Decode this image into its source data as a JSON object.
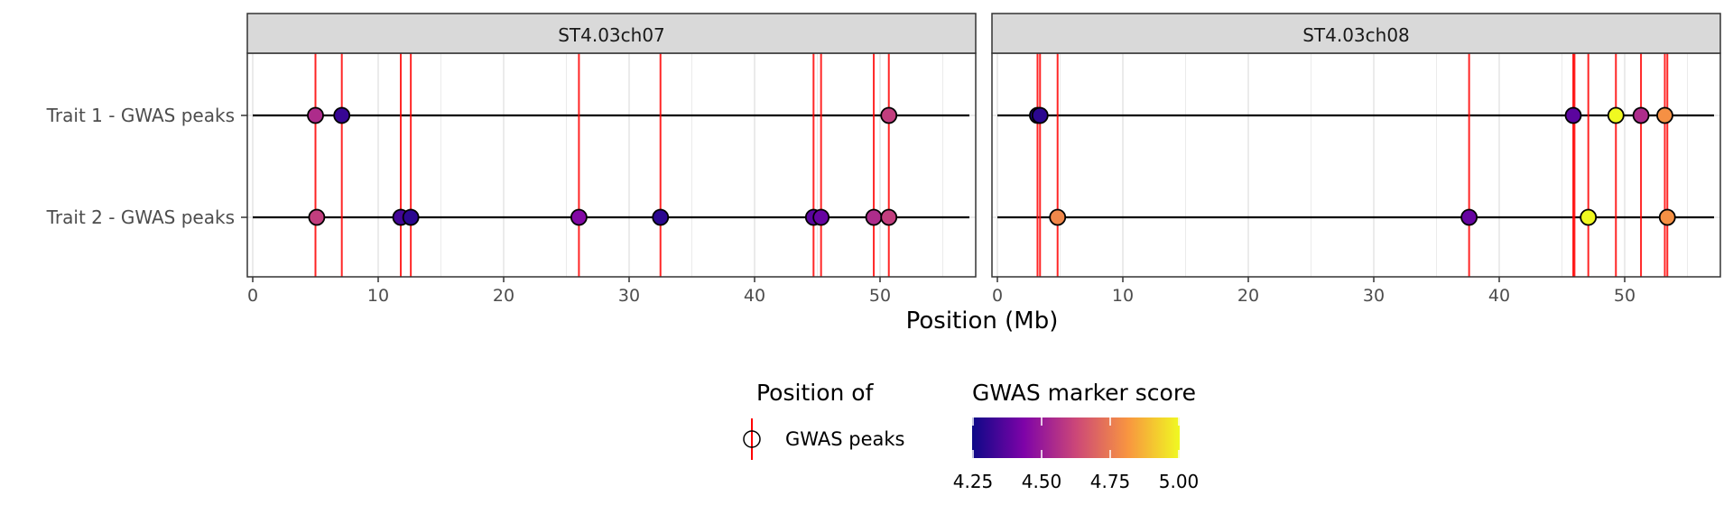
{
  "chart_data": {
    "type": "scatter",
    "title": "",
    "xlabel": "Position (Mb)",
    "ylabel": "",
    "xlim": [
      0,
      57
    ],
    "x_ticks": [
      0,
      10,
      20,
      30,
      40,
      50
    ],
    "grid": true,
    "rows": [
      "Trait 1 - GWAS peaks",
      "Trait 2 - GWAS peaks"
    ],
    "panels": [
      {
        "name": "ST4.03ch07",
        "peak_lines": [
          5.0,
          7.1,
          11.8,
          12.6,
          26.0,
          32.5,
          44.7,
          45.3,
          49.5,
          50.7
        ],
        "points": [
          {
            "row": "Trait 1 - GWAS peaks",
            "x": 5.0,
            "score": 4.55
          },
          {
            "row": "Trait 1 - GWAS peaks",
            "x": 7.1,
            "score": 4.32
          },
          {
            "row": "Trait 1 - GWAS peaks",
            "x": 50.7,
            "score": 4.6
          },
          {
            "row": "Trait 2 - GWAS peaks",
            "x": 5.1,
            "score": 4.6
          },
          {
            "row": "Trait 2 - GWAS peaks",
            "x": 11.8,
            "score": 4.34
          },
          {
            "row": "Trait 2 - GWAS peaks",
            "x": 12.6,
            "score": 4.3
          },
          {
            "row": "Trait 2 - GWAS peaks",
            "x": 26.0,
            "score": 4.45
          },
          {
            "row": "Trait 2 - GWAS peaks",
            "x": 32.5,
            "score": 4.3
          },
          {
            "row": "Trait 2 - GWAS peaks",
            "x": 44.7,
            "score": 4.38
          },
          {
            "row": "Trait 2 - GWAS peaks",
            "x": 45.3,
            "score": 4.4
          },
          {
            "row": "Trait 2 - GWAS peaks",
            "x": 49.5,
            "score": 4.55
          },
          {
            "row": "Trait 2 - GWAS peaks",
            "x": 50.7,
            "score": 4.6
          }
        ]
      },
      {
        "name": "ST4.03ch08",
        "peak_lines": [
          3.2,
          3.4,
          4.8,
          37.6,
          45.9,
          46.0,
          47.1,
          49.3,
          51.3,
          53.2,
          53.4
        ],
        "points": [
          {
            "row": "Trait 1 - GWAS peaks",
            "x": 3.2,
            "score": 4.28
          },
          {
            "row": "Trait 1 - GWAS peaks",
            "x": 3.4,
            "score": 4.3
          },
          {
            "row": "Trait 1 - GWAS peaks",
            "x": 45.9,
            "score": 4.38
          },
          {
            "row": "Trait 1 - GWAS peaks",
            "x": 49.3,
            "score": 5.0
          },
          {
            "row": "Trait 1 - GWAS peaks",
            "x": 51.3,
            "score": 4.55
          },
          {
            "row": "Trait 1 - GWAS peaks",
            "x": 53.2,
            "score": 4.8
          },
          {
            "row": "Trait 2 - GWAS peaks",
            "x": 4.8,
            "score": 4.78
          },
          {
            "row": "Trait 2 - GWAS peaks",
            "x": 37.6,
            "score": 4.4
          },
          {
            "row": "Trait 2 - GWAS peaks",
            "x": 47.1,
            "score": 5.0
          },
          {
            "row": "Trait 2 - GWAS peaks",
            "x": 53.4,
            "score": 4.8
          }
        ]
      }
    ],
    "legend_lines": {
      "title": "Position of",
      "items": [
        "GWAS peaks"
      ]
    },
    "colorbar": {
      "title": "GWAS marker score",
      "range": [
        4.25,
        5.0
      ],
      "ticks": [
        4.25,
        4.5,
        4.75,
        5.0
      ],
      "tick_labels": [
        "4.25",
        "4.50",
        "4.75",
        "5.00"
      ],
      "colors": [
        "#0d0887",
        "#7e03a8",
        "#cc4778",
        "#f89540",
        "#f0f921"
      ]
    },
    "colors": {
      "peak_line": "#ff0000",
      "strip_fill": "#d9d9d9",
      "track_line": "#000000",
      "grid": "#ebebeb",
      "panel_border": "#333333"
    },
    "legend_position": "bottom"
  }
}
